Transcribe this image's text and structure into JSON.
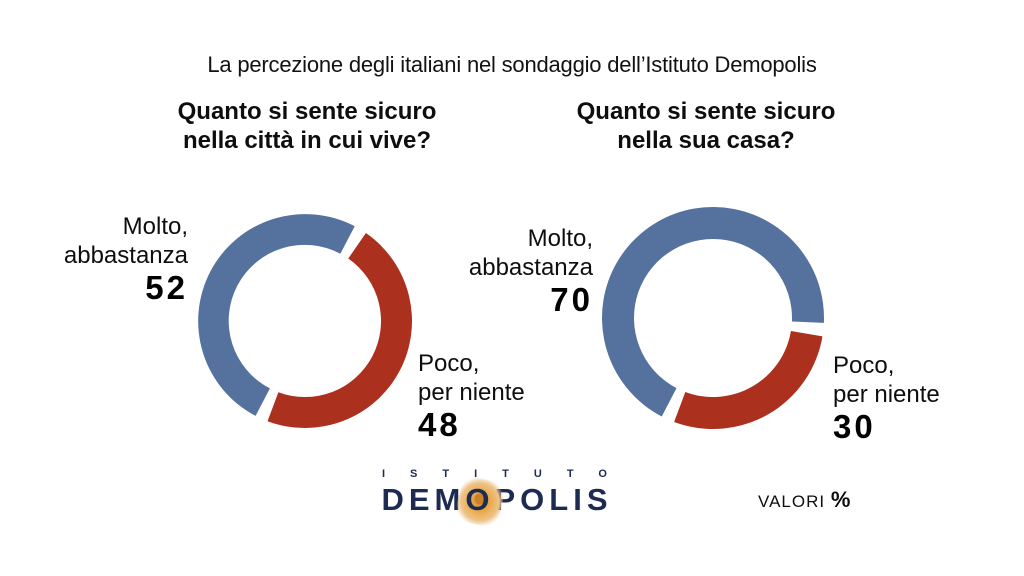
{
  "page": {
    "title": "La percezione degli italiani nel sondaggio dell’Istituto Demopolis"
  },
  "colors": {
    "blue": "#55719e",
    "red": "#ab301e",
    "navy_logo": "#1d2a52",
    "orange_logo": "#e09a3a",
    "text": "#121212"
  },
  "chart_data": [
    {
      "type": "donut",
      "title": "Quanto si sente sicuro nella città in cui vive?",
      "title_lines": [
        "Quanto si sente sicuro",
        "nella città in cui vive?"
      ],
      "unit": "percent",
      "start_angle_deg": 204,
      "gap_deg": 7,
      "segments": [
        {
          "label": "Molto, abbastanza",
          "label_lines": [
            "Molto,",
            "abbastanza"
          ],
          "value": 52,
          "color": "#55719e"
        },
        {
          "label": "Poco, per niente",
          "label_lines": [
            "Poco,",
            "per niente"
          ],
          "value": 48,
          "color": "#ab301e"
        }
      ]
    },
    {
      "type": "donut",
      "title": "Quanto si sente sicuro nella sua casa?",
      "title_lines": [
        "Quanto si sente sicuro",
        "nella sua casa?"
      ],
      "unit": "percent",
      "start_angle_deg": 204,
      "gap_deg": 7,
      "segments": [
        {
          "label": "Molto, abbastanza",
          "label_lines": [
            "Molto,",
            "abbastanza"
          ],
          "value": 70,
          "color": "#55719e"
        },
        {
          "label": "Poco, per niente",
          "label_lines": [
            "Poco,",
            "per niente"
          ],
          "value": 30,
          "color": "#ab301e"
        }
      ]
    }
  ],
  "footer": {
    "logo": {
      "istituto": "ISTITUTO",
      "demopolis_pre": "DEM",
      "demopolis_o": "O",
      "demopolis_post": "POLIS"
    },
    "valori_label": "VALORI",
    "valori_symbol": "%"
  }
}
